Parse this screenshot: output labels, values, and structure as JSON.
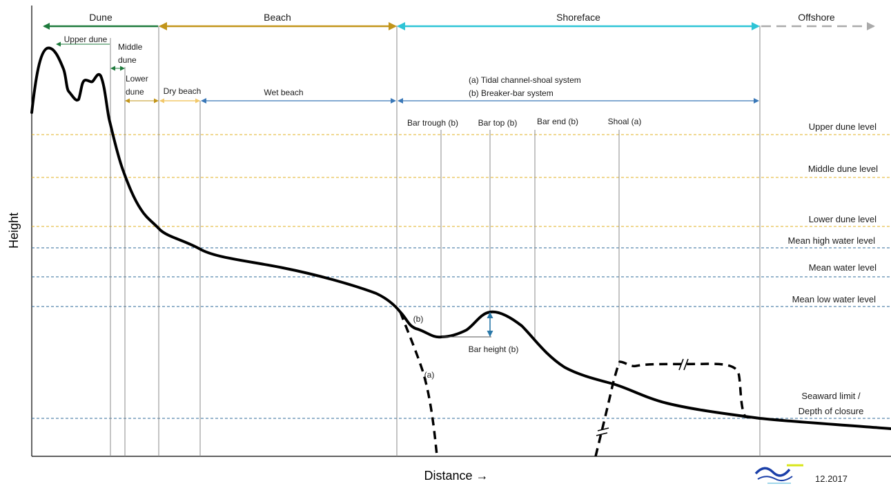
{
  "colors": {
    "dune": "#1e7a3c",
    "beach": "#c2951a",
    "dry_beach": "#f2c86a",
    "wet_beach": "#3a78b8",
    "shoreface": "#2ec4d6",
    "offshore": "#aaaaaa",
    "dune_level_line": "#e0b020",
    "water_level_line": "#2e6a9a",
    "bar_height_arrow": "#2a78a8",
    "profile": "#000000",
    "guide": "#8a8a8a"
  },
  "zones": {
    "dune": "Dune",
    "beach": "Beach",
    "shoreface": "Shoreface",
    "offshore": "Offshore"
  },
  "subzones": {
    "upper_dune": "Upper dune",
    "middle_dune_1": "Middle",
    "middle_dune_2": "dune",
    "lower_dune_1": "Lower",
    "lower_dune_2": "dune",
    "dry_beach": "Dry beach",
    "wet_beach": "Wet beach",
    "system_a": "(a) Tidal channel-shoal system",
    "system_b": "(b) Breaker-bar system"
  },
  "features": {
    "bar_trough": "Bar trough (b)",
    "bar_top": "Bar top (b)",
    "bar_end": "Bar end (b)",
    "shoal": "Shoal (a)",
    "bar_height": "Bar height (b)",
    "marker_b": "(b)",
    "marker_a": "(a)"
  },
  "levels": {
    "upper_dune": "Upper dune level",
    "middle_dune": "Middle dune level",
    "lower_dune": "Lower dune level",
    "mean_high_water": "Mean high water level",
    "mean_water": "Mean water level",
    "mean_low_water": "Mean low water level",
    "seaward_limit_1": "Seaward limit /",
    "seaward_limit_2": "Depth of closure"
  },
  "axes": {
    "y_label": "Height",
    "x_label": "Distance →"
  },
  "footer": {
    "date": "12.2017",
    "logo": "wave-logo-icon"
  }
}
